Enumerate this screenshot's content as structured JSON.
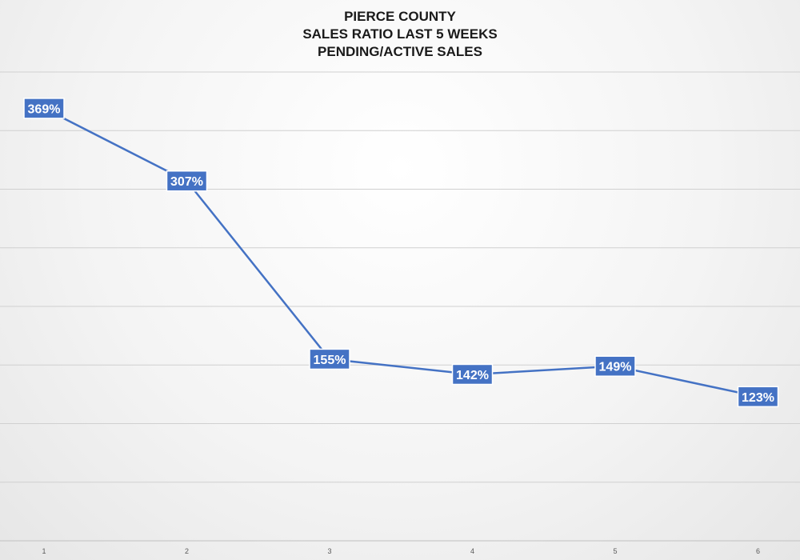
{
  "chart_data": {
    "type": "line",
    "title": [
      "PIERCE COUNTY",
      "SALES RATIO LAST 5 WEEKS",
      "PENDING/ACTIVE SALES"
    ],
    "categories": [
      "1",
      "2",
      "3",
      "4",
      "5",
      "6"
    ],
    "series": [
      {
        "values": [
          369,
          307,
          155,
          142,
          149,
          123
        ],
        "labels": [
          "369%",
          "307%",
          "155%",
          "142%",
          "149%",
          "123%"
        ],
        "color": "#4472C4"
      }
    ],
    "ylim": [
      0,
      400
    ],
    "grid": true,
    "legend": "none"
  }
}
